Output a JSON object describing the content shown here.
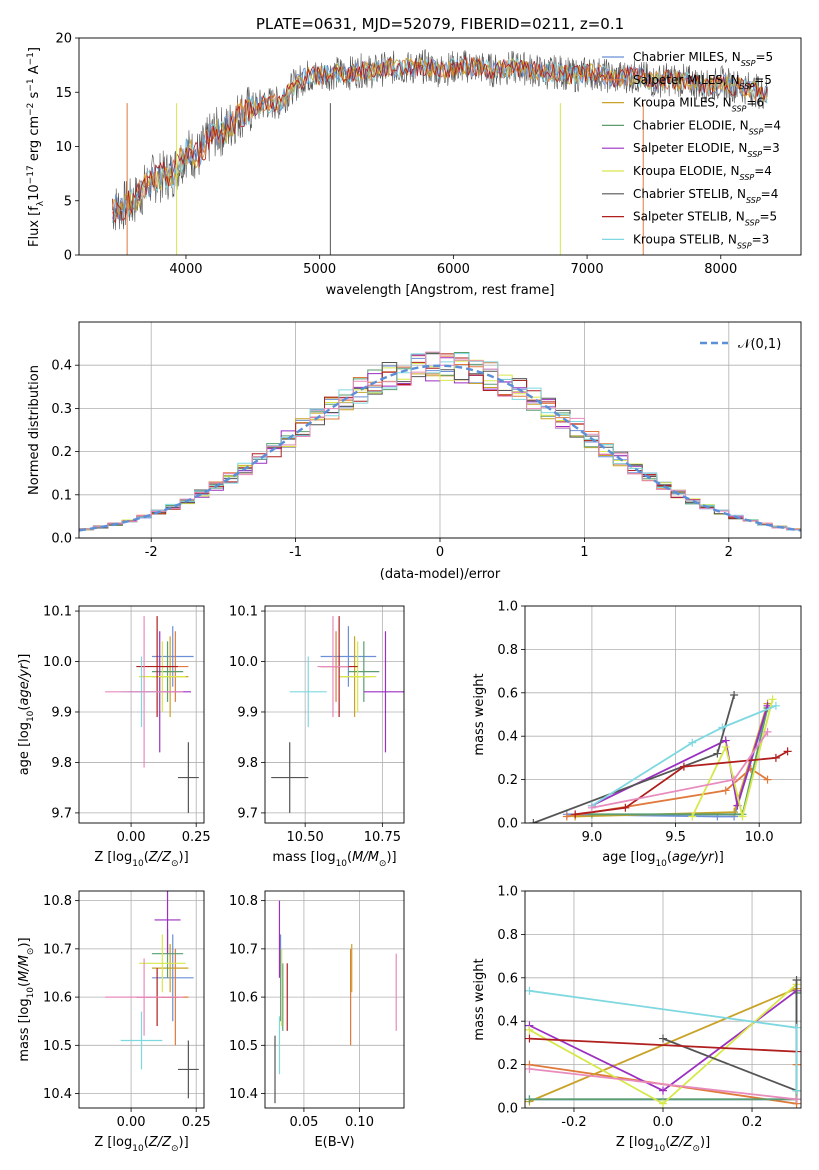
{
  "figure_title": "PLATE=0631, MJD=52079, FIBERID=0211, z=0.1",
  "colors": {
    "chabrier_miles": "#6b8fd8",
    "salpeter_miles": "#e07a3c",
    "kroupa_miles": "#c9a227",
    "chabrier_elodie": "#5a9e6f",
    "salpeter_elodie": "#9b2fc2",
    "kroupa_elodie": "#d6e84a",
    "chabrier_stelib": "#555555",
    "salpeter_stelib": "#b01e1e",
    "kroupa_stelib": "#7fd8e0",
    "extra_pink": "#e88bbd",
    "gauss": "#5b8fd8"
  },
  "chart_data": [
    {
      "type": "line",
      "title": "PLATE=0631, MJD=52079, FIBERID=0211, z=0.1",
      "xlabel": "wavelength [Angstrom, rest frame]",
      "ylabel": "Flux [f_λ10^-17 erg cm^-2 s^-1 A^-1]",
      "xlim": [
        3200,
        8600
      ],
      "ylim": [
        0,
        20
      ],
      "xticks": [
        4000,
        5000,
        6000,
        7000,
        8000
      ],
      "yticks": [
        0,
        5,
        10,
        15,
        20
      ],
      "spectrum_x": [
        3450,
        3600,
        3750,
        3900,
        4000,
        4100,
        4200,
        4300,
        4400,
        4500,
        4600,
        4700,
        4800,
        4900,
        5000,
        5100,
        5200,
        5300,
        5400,
        5500,
        5600,
        5700,
        5800,
        5900,
        6000,
        6100,
        6200,
        6300,
        6400,
        6500,
        6600,
        6700,
        6800,
        6900,
        7000,
        7100,
        7200,
        7300,
        7400,
        7500,
        7600,
        7700,
        7800,
        7900,
        8000,
        8100,
        8200,
        8350
      ],
      "spectrum_y": [
        4.2,
        4.8,
        7.0,
        7.5,
        9.5,
        9.2,
        11.2,
        11.5,
        13.0,
        13.5,
        14.0,
        14.0,
        15.5,
        16.5,
        16.5,
        16.8,
        16.7,
        17.0,
        16.9,
        17.2,
        17.3,
        17.2,
        17.4,
        17.0,
        17.3,
        17.4,
        17.3,
        17.0,
        17.2,
        17.3,
        17.0,
        16.8,
        16.9,
        16.5,
        16.8,
        16.7,
        16.3,
        16.5,
        16.4,
        16.0,
        16.2,
        16.1,
        15.9,
        15.5,
        15.9,
        15.6,
        15.4,
        14.8
      ],
      "legend": [
        {
          "name": "Chabrier MILES, N_SSP=5",
          "color": "chabrier_miles"
        },
        {
          "name": "Salpeter MILES, N_SSP=5",
          "color": "salpeter_miles"
        },
        {
          "name": "Kroupa MILES, N_SSP=6",
          "color": "kroupa_miles"
        },
        {
          "name": "Chabrier ELODIE, N_SSP=4",
          "color": "chabrier_elodie"
        },
        {
          "name": "Salpeter ELODIE, N_SSP=3",
          "color": "salpeter_elodie"
        },
        {
          "name": "Kroupa ELODIE, N_SSP=4",
          "color": "kroupa_elodie"
        },
        {
          "name": "Chabrier STELIB, N_SSP=4",
          "color": "chabrier_stelib"
        },
        {
          "name": "Salpeter STELIB, N_SSP=5",
          "color": "salpeter_stelib"
        },
        {
          "name": "Kroupa STELIB, N_SSP=3",
          "color": "kroupa_stelib"
        }
      ],
      "grid": false,
      "legend_position": "top-right"
    },
    {
      "type": "histogram",
      "xlabel": "(data-model)/error",
      "ylabel": "Normed distribution",
      "xlim": [
        -2.5,
        2.5
      ],
      "ylim": [
        0,
        0.5
      ],
      "xticks": [
        -2,
        -1,
        0,
        1,
        2
      ],
      "yticks": [
        0.0,
        0.1,
        0.2,
        0.3,
        0.4
      ],
      "legend": [
        {
          "name": "𝒩(0,1)",
          "color": "gauss"
        }
      ],
      "grid": true,
      "legend_position": "top-right"
    },
    {
      "type": "scatter",
      "xlabel": "Z [log10(Z/Z⊙)]",
      "ylabel": "age  [log10(age/yr)]",
      "xlim": [
        -0.2,
        0.28
      ],
      "ylim": [
        9.68,
        10.11
      ],
      "xticks": [
        0.0,
        0.25
      ],
      "yticks": [
        9.7,
        9.8,
        9.9,
        10.0,
        10.1
      ],
      "grid": true,
      "points": [
        {
          "x": 0.16,
          "y": 10.01,
          "xerr": 0.08,
          "yerr": 0.06,
          "color": "chabrier_miles"
        },
        {
          "x": 0.17,
          "y": 9.99,
          "xerr": 0.05,
          "yerr": 0.07,
          "color": "salpeter_miles"
        },
        {
          "x": 0.15,
          "y": 9.97,
          "xerr": 0.07,
          "yerr": 0.08,
          "color": "kroupa_miles"
        },
        {
          "x": 0.14,
          "y": 9.98,
          "xerr": 0.06,
          "yerr": 0.06,
          "color": "chabrier_elodie"
        },
        {
          "x": 0.11,
          "y": 9.94,
          "xerr": 0.12,
          "yerr": 0.12,
          "color": "salpeter_elodie"
        },
        {
          "x": 0.12,
          "y": 9.97,
          "xerr": 0.09,
          "yerr": 0.07,
          "color": "kroupa_elodie"
        },
        {
          "x": 0.22,
          "y": 9.77,
          "xerr": 0.04,
          "yerr": 0.07,
          "color": "chabrier_stelib"
        },
        {
          "x": 0.1,
          "y": 9.99,
          "xerr": 0.08,
          "yerr": 0.1,
          "color": "salpeter_stelib"
        },
        {
          "x": 0.04,
          "y": 9.94,
          "xerr": 0.08,
          "yerr": 0.07,
          "color": "kroupa_stelib"
        },
        {
          "x": 0.05,
          "y": 9.94,
          "xerr": 0.15,
          "yerr": 0.15,
          "color": "extra_pink"
        }
      ]
    },
    {
      "type": "scatter",
      "xlabel": "mass [log10(M/M⊙)]",
      "xlim": [
        10.37,
        10.82
      ],
      "ylim": [
        9.68,
        10.11
      ],
      "xticks": [
        10.5,
        10.75
      ],
      "yticks": [
        9.7,
        9.8,
        9.9,
        10.0,
        10.1
      ],
      "grid": true,
      "points": [
        {
          "x": 10.64,
          "y": 10.01,
          "xerr": 0.09,
          "yerr": 0.06,
          "color": "chabrier_miles"
        },
        {
          "x": 10.6,
          "y": 9.99,
          "xerr": 0.05,
          "yerr": 0.07,
          "color": "salpeter_miles"
        },
        {
          "x": 10.66,
          "y": 9.97,
          "xerr": 0.05,
          "yerr": 0.08,
          "color": "kroupa_miles"
        },
        {
          "x": 10.69,
          "y": 9.98,
          "xerr": 0.05,
          "yerr": 0.06,
          "color": "chabrier_elodie"
        },
        {
          "x": 10.76,
          "y": 9.94,
          "xerr": 0.07,
          "yerr": 0.12,
          "color": "salpeter_elodie"
        },
        {
          "x": 10.67,
          "y": 9.97,
          "xerr": 0.06,
          "yerr": 0.07,
          "color": "kroupa_elodie"
        },
        {
          "x": 10.45,
          "y": 9.77,
          "xerr": 0.06,
          "yerr": 0.07,
          "color": "chabrier_stelib"
        },
        {
          "x": 10.61,
          "y": 9.99,
          "xerr": 0.06,
          "yerr": 0.1,
          "color": "salpeter_stelib"
        },
        {
          "x": 10.51,
          "y": 9.94,
          "xerr": 0.06,
          "yerr": 0.07,
          "color": "kroupa_stelib"
        },
        {
          "x": 10.59,
          "y": 9.99,
          "xerr": 0.05,
          "yerr": 0.1,
          "color": "extra_pink"
        }
      ]
    },
    {
      "type": "line",
      "xlabel": "age  [log10(age/yr)]",
      "ylabel": "mass weight",
      "xlim": [
        8.6,
        10.25
      ],
      "ylim": [
        0,
        1.0
      ],
      "xticks": [
        9.0,
        9.5,
        10.0
      ],
      "yticks": [
        0.0,
        0.2,
        0.4,
        0.6,
        0.8,
        1.0
      ],
      "grid": true,
      "series": [
        {
          "color": "chabrier_miles",
          "x": [
            8.85,
            9.75,
            9.85,
            10.05
          ],
          "y": [
            0.04,
            0.03,
            0.03,
            0.53
          ]
        },
        {
          "color": "salpeter_miles",
          "x": [
            8.85,
            9.8,
            9.95,
            10.05
          ],
          "y": [
            0.03,
            0.15,
            0.25,
            0.2
          ]
        },
        {
          "color": "kroupa_miles",
          "x": [
            8.9,
            9.85,
            10.05
          ],
          "y": [
            0.03,
            0.05,
            0.55
          ]
        },
        {
          "color": "chabrier_elodie",
          "x": [
            9.0,
            9.9,
            10.05
          ],
          "y": [
            0.04,
            0.04,
            0.53
          ]
        },
        {
          "color": "salpeter_elodie",
          "x": [
            9.0,
            9.8,
            9.87,
            10.05
          ],
          "y": [
            0.08,
            0.38,
            0.08,
            0.54
          ]
        },
        {
          "color": "kroupa_elodie",
          "x": [
            9.6,
            9.8,
            9.9,
            10.08
          ],
          "y": [
            0.03,
            0.35,
            0.03,
            0.57
          ]
        },
        {
          "color": "chabrier_stelib",
          "x": [
            8.65,
            9.75,
            9.85
          ],
          "y": [
            0.0,
            0.32,
            0.59
          ]
        },
        {
          "color": "salpeter_stelib",
          "x": [
            8.9,
            9.2,
            9.55,
            10.1,
            10.17
          ],
          "y": [
            0.04,
            0.07,
            0.26,
            0.3,
            0.33
          ]
        },
        {
          "color": "kroupa_stelib",
          "x": [
            9.0,
            9.6,
            9.78,
            10.1
          ],
          "y": [
            0.08,
            0.37,
            0.44,
            0.54
          ]
        },
        {
          "color": "extra_pink",
          "x": [
            9.0,
            9.85,
            10.05
          ],
          "y": [
            0.07,
            0.2,
            0.42
          ]
        }
      ]
    },
    {
      "type": "scatter",
      "xlabel": "Z [log10(Z/Z⊙)]",
      "ylabel": "mass [log10(M/M⊙)]",
      "xlim": [
        -0.2,
        0.28
      ],
      "ylim": [
        10.37,
        10.82
      ],
      "xticks": [
        0.0,
        0.25
      ],
      "yticks": [
        10.4,
        10.5,
        10.6,
        10.7,
        10.8
      ],
      "grid": true,
      "points": [
        {
          "x": 0.16,
          "y": 10.64,
          "xerr": 0.08,
          "yerr": 0.09,
          "color": "chabrier_miles"
        },
        {
          "x": 0.17,
          "y": 10.6,
          "xerr": 0.05,
          "yerr": 0.1,
          "color": "salpeter_miles"
        },
        {
          "x": 0.15,
          "y": 10.66,
          "xerr": 0.07,
          "yerr": 0.05,
          "color": "kroupa_miles"
        },
        {
          "x": 0.14,
          "y": 10.69,
          "xerr": 0.06,
          "yerr": 0.05,
          "color": "chabrier_elodie"
        },
        {
          "x": 0.14,
          "y": 10.76,
          "xerr": 0.05,
          "yerr": 0.07,
          "color": "salpeter_elodie"
        },
        {
          "x": 0.12,
          "y": 10.67,
          "xerr": 0.09,
          "yerr": 0.06,
          "color": "kroupa_elodie"
        },
        {
          "x": 0.22,
          "y": 10.45,
          "xerr": 0.04,
          "yerr": 0.06,
          "color": "chabrier_stelib"
        },
        {
          "x": 0.1,
          "y": 10.6,
          "xerr": 0.08,
          "yerr": 0.06,
          "color": "salpeter_stelib"
        },
        {
          "x": 0.04,
          "y": 10.51,
          "xerr": 0.08,
          "yerr": 0.06,
          "color": "kroupa_stelib"
        },
        {
          "x": 0.05,
          "y": 10.6,
          "xerr": 0.15,
          "yerr": 0.08,
          "color": "extra_pink"
        }
      ]
    },
    {
      "type": "scatter",
      "xlabel": "E(B-V)",
      "xlim": [
        0.015,
        0.14
      ],
      "ylim": [
        10.37,
        10.82
      ],
      "xticks": [
        0.05,
        0.1
      ],
      "yticks": [
        10.4,
        10.5,
        10.6,
        10.7,
        10.8
      ],
      "grid": true,
      "points": [
        {
          "x": 0.029,
          "y": 10.64,
          "xerr": 0.0,
          "yerr": 0.09,
          "color": "chabrier_miles"
        },
        {
          "x": 0.092,
          "y": 10.6,
          "xerr": 0.0,
          "yerr": 0.1,
          "color": "salpeter_miles"
        },
        {
          "x": 0.093,
          "y": 10.66,
          "xerr": 0.0,
          "yerr": 0.05,
          "color": "kroupa_miles"
        },
        {
          "x": 0.031,
          "y": 10.6,
          "xerr": 0.0,
          "yerr": 0.07,
          "color": "chabrier_elodie"
        },
        {
          "x": 0.028,
          "y": 10.72,
          "xerr": 0.0,
          "yerr": 0.08,
          "color": "salpeter_elodie"
        },
        {
          "x": 0.03,
          "y": 10.62,
          "xerr": 0.0,
          "yerr": 0.08,
          "color": "kroupa_elodie"
        },
        {
          "x": 0.024,
          "y": 10.45,
          "xerr": 0.0,
          "yerr": 0.07,
          "color": "chabrier_stelib"
        },
        {
          "x": 0.035,
          "y": 10.6,
          "xerr": 0.0,
          "yerr": 0.07,
          "color": "salpeter_stelib"
        },
        {
          "x": 0.028,
          "y": 10.5,
          "xerr": 0.0,
          "yerr": 0.06,
          "color": "kroupa_stelib"
        },
        {
          "x": 0.133,
          "y": 10.61,
          "xerr": 0.0,
          "yerr": 0.08,
          "color": "extra_pink"
        }
      ]
    },
    {
      "type": "line",
      "xlabel": "Z [log10(Z/Z⊙)]",
      "ylabel": "mass weight",
      "xlim": [
        -0.31,
        0.31
      ],
      "ylim": [
        0,
        1.0
      ],
      "xticks": [
        -0.2,
        0.0,
        0.2
      ],
      "yticks": [
        0.0,
        0.2,
        0.4,
        0.6,
        0.8,
        1.0
      ],
      "grid": true,
      "series": [
        {
          "color": "chabrier_miles",
          "x": [
            -0.3,
            0.3,
            0.3
          ],
          "y": [
            0.04,
            0.04,
            0.53
          ]
        },
        {
          "color": "salpeter_miles",
          "x": [
            -0.3,
            0.3,
            0.3
          ],
          "y": [
            0.2,
            0.02,
            0.2
          ]
        },
        {
          "color": "kroupa_miles",
          "x": [
            -0.3,
            0.3
          ],
          "y": [
            0.03,
            0.55
          ]
        },
        {
          "color": "chabrier_elodie",
          "x": [
            -0.3,
            0.3,
            0.3
          ],
          "y": [
            0.04,
            0.04,
            0.53
          ]
        },
        {
          "color": "salpeter_elodie",
          "x": [
            -0.3,
            0.0,
            0.3
          ],
          "y": [
            0.38,
            0.08,
            0.54
          ]
        },
        {
          "color": "kroupa_elodie",
          "x": [
            -0.3,
            0.0,
            0.3
          ],
          "y": [
            0.36,
            0.02,
            0.57
          ]
        },
        {
          "color": "chabrier_stelib",
          "x": [
            0.0,
            0.3,
            0.3
          ],
          "y": [
            0.32,
            0.08,
            0.59
          ]
        },
        {
          "color": "salpeter_stelib",
          "x": [
            -0.3,
            0.3
          ],
          "y": [
            0.32,
            0.26
          ]
        },
        {
          "color": "kroupa_stelib",
          "x": [
            -0.3,
            0.3,
            0.3
          ],
          "y": [
            0.54,
            0.37,
            0.08
          ]
        },
        {
          "color": "extra_pink",
          "x": [
            -0.3,
            0.3
          ],
          "y": [
            0.18,
            0.04
          ]
        }
      ]
    }
  ]
}
